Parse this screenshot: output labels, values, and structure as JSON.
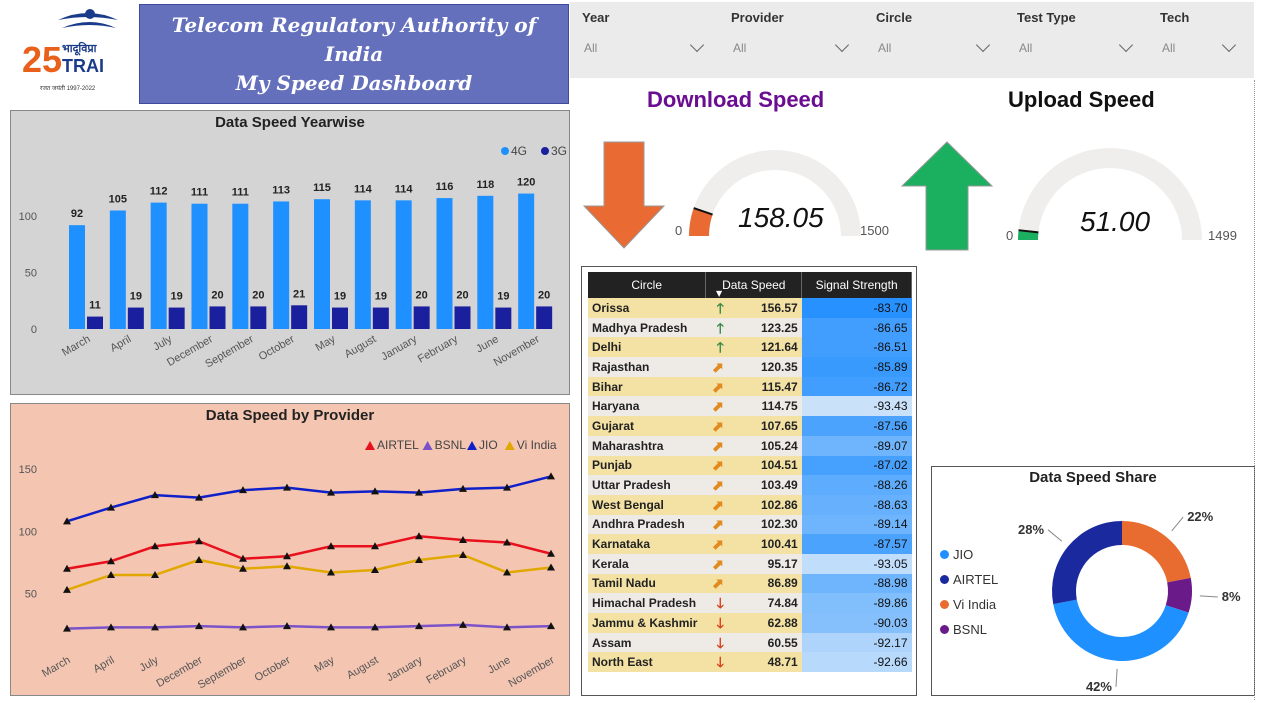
{
  "header": {
    "logo": {
      "text_hindi": "भादूविप्रा",
      "text_brand": "TRAI",
      "number": "25",
      "tagline": "रजत जयंती 1997-2022"
    },
    "title_line1": "Telecom Regulatory Authority of India",
    "title_line2": "My Speed Dashboard"
  },
  "filters": [
    {
      "label": "Year",
      "value": "All"
    },
    {
      "label": "Provider",
      "value": "All"
    },
    {
      "label": "Circle",
      "value": "All"
    },
    {
      "label": "Test Type",
      "value": "All"
    },
    {
      "label": "Tech",
      "value": "All"
    }
  ],
  "colors": {
    "c4g": "#1e90ff",
    "c3g": "#1a1f9e",
    "airtel": "#e8101d",
    "bsnl": "#7b52c8",
    "jio": "#1020c8",
    "vi": "#e0a800",
    "down_arrow": "#e96a33",
    "up_arrow": "#1ab060"
  },
  "download": {
    "title": "Download Speed",
    "value": "158.05",
    "min": "0",
    "max": "1500",
    "arrow_icon": "down-arrow-icon"
  },
  "upload": {
    "title": "Upload Speed",
    "value": "51.00",
    "min": "0",
    "max": "1499",
    "arrow_icon": "up-arrow-icon"
  },
  "chart_data": [
    {
      "type": "bar",
      "title": "Data Speed Yearwise",
      "categories": [
        "March",
        "April",
        "July",
        "December",
        "September",
        "October",
        "May",
        "August",
        "January",
        "February",
        "June",
        "November"
      ],
      "series": [
        {
          "name": "4G",
          "values": [
            92,
            105,
            112,
            111,
            111,
            113,
            115,
            114,
            114,
            116,
            118,
            120
          ]
        },
        {
          "name": "3G",
          "values": [
            11,
            19,
            19,
            20,
            20,
            21,
            19,
            19,
            20,
            20,
            19,
            20
          ]
        }
      ],
      "yticks": [
        "0",
        "50",
        "100"
      ],
      "ylim": [
        0,
        140
      ],
      "legend": "top-right"
    },
    {
      "type": "line",
      "title": "Data Speed by Provider",
      "categories": [
        "March",
        "April",
        "July",
        "December",
        "September",
        "October",
        "May",
        "August",
        "January",
        "February",
        "June",
        "November"
      ],
      "series": [
        {
          "name": "AIRTEL",
          "values": [
            70,
            76,
            88,
            92,
            78,
            80,
            88,
            88,
            96,
            93,
            91,
            82
          ]
        },
        {
          "name": "BSNL",
          "values": [
            22,
            23,
            23,
            24,
            23,
            24,
            23,
            23,
            24,
            25,
            23,
            24
          ]
        },
        {
          "name": "JIO",
          "values": [
            108,
            119,
            129,
            127,
            133,
            135,
            131,
            132,
            131,
            134,
            135,
            144
          ]
        },
        {
          "name": "Vi India",
          "values": [
            53,
            65,
            65,
            77,
            70,
            72,
            67,
            69,
            77,
            81,
            67,
            71
          ]
        }
      ],
      "yticks": [
        "50",
        "100",
        "150"
      ],
      "ylim": [
        0,
        170
      ],
      "legend": "top-right"
    },
    {
      "type": "pie",
      "title": "Data Speed Share",
      "labels": [
        "JIO",
        "AIRTEL",
        "Vi India",
        "BSNL"
      ],
      "values": [
        42,
        28,
        22,
        8
      ],
      "value_labels": [
        "42%",
        "28%",
        "22%",
        "8%"
      ],
      "colors": [
        "#1e90ff",
        "#1a2a9e",
        "#e86c30",
        "#6b1a8a"
      ]
    }
  ],
  "table": {
    "headers": [
      "Circle",
      "Data Speed",
      "Signal Strength"
    ],
    "rows": [
      {
        "circle": "Orissa",
        "trend": "up",
        "speed": "156.57",
        "signal": "-83.70",
        "sig_level": 0.95
      },
      {
        "circle": "Madhya Pradesh",
        "trend": "up",
        "speed": "123.25",
        "signal": "-86.65",
        "sig_level": 0.8
      },
      {
        "circle": "Delhi",
        "trend": "up",
        "speed": "121.64",
        "signal": "-86.51",
        "sig_level": 0.8
      },
      {
        "circle": "Rajasthan",
        "trend": "upright",
        "speed": "120.35",
        "signal": "-85.89",
        "sig_level": 0.85
      },
      {
        "circle": "Bihar",
        "trend": "upright",
        "speed": "115.47",
        "signal": "-86.72",
        "sig_level": 0.8
      },
      {
        "circle": "Haryana",
        "trend": "upright",
        "speed": "114.75",
        "signal": "-93.43",
        "sig_level": 0.05
      },
      {
        "circle": "Gujarat",
        "trend": "upright",
        "speed": "107.65",
        "signal": "-87.56",
        "sig_level": 0.75
      },
      {
        "circle": "Maharashtra",
        "trend": "upright",
        "speed": "105.24",
        "signal": "-89.07",
        "sig_level": 0.55
      },
      {
        "circle": "Punjab",
        "trend": "upright",
        "speed": "104.51",
        "signal": "-87.02",
        "sig_level": 0.78
      },
      {
        "circle": "Uttar Pradesh",
        "trend": "upright",
        "speed": "103.49",
        "signal": "-88.26",
        "sig_level": 0.65
      },
      {
        "circle": "West Bengal",
        "trend": "upright",
        "speed": "102.86",
        "signal": "-88.63",
        "sig_level": 0.6
      },
      {
        "circle": "Andhra Pradesh",
        "trend": "upright",
        "speed": "102.30",
        "signal": "-89.14",
        "sig_level": 0.55
      },
      {
        "circle": "Karnataka",
        "trend": "upright",
        "speed": "100.41",
        "signal": "-87.57",
        "sig_level": 0.75
      },
      {
        "circle": "Kerala",
        "trend": "upright",
        "speed": "95.17",
        "signal": "-93.05",
        "sig_level": 0.1
      },
      {
        "circle": "Tamil Nadu",
        "trend": "upright",
        "speed": "86.89",
        "signal": "-88.98",
        "sig_level": 0.55
      },
      {
        "circle": "Himachal Pradesh",
        "trend": "down",
        "speed": "74.84",
        "signal": "-89.86",
        "sig_level": 0.45
      },
      {
        "circle": "Jammu & Kashmir",
        "trend": "down",
        "speed": "62.88",
        "signal": "-90.03",
        "sig_level": 0.42
      },
      {
        "circle": "Assam",
        "trend": "down",
        "speed": "60.55",
        "signal": "-92.17",
        "sig_level": 0.2
      },
      {
        "circle": "North East",
        "trend": "down",
        "speed": "48.71",
        "signal": "-92.66",
        "sig_level": 0.15
      }
    ]
  }
}
